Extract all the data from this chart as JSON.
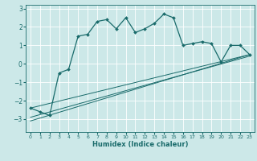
{
  "xlabel": "Humidex (Indice chaleur)",
  "bg_color": "#cce8e8",
  "line_color": "#1a6b6b",
  "grid_color": "#ffffff",
  "xlim": [
    -0.5,
    23.5
  ],
  "ylim": [
    -3.7,
    3.2
  ],
  "yticks": [
    -3,
    -2,
    -1,
    0,
    1,
    2,
    3
  ],
  "xticks": [
    0,
    1,
    2,
    3,
    4,
    5,
    6,
    7,
    8,
    9,
    10,
    11,
    12,
    13,
    14,
    15,
    16,
    17,
    18,
    19,
    20,
    21,
    22,
    23
  ],
  "main_x": [
    0,
    1,
    2,
    3,
    4,
    5,
    6,
    7,
    8,
    9,
    10,
    11,
    12,
    13,
    14,
    15,
    16,
    17,
    18,
    19,
    20,
    21,
    22,
    23
  ],
  "main_y": [
    -2.4,
    -2.6,
    -2.8,
    -0.5,
    -0.3,
    1.5,
    1.6,
    2.3,
    2.4,
    1.9,
    2.5,
    1.7,
    1.9,
    2.2,
    2.7,
    2.5,
    1.0,
    1.1,
    1.2,
    1.1,
    0.1,
    1.0,
    1.0,
    0.5
  ],
  "line1_x": [
    0,
    23
  ],
  "line1_y": [
    -2.4,
    0.5
  ],
  "line2_x": [
    0,
    23
  ],
  "line2_y": [
    -2.9,
    0.42
  ],
  "line3_x": [
    0,
    23
  ],
  "line3_y": [
    -3.1,
    0.5
  ]
}
